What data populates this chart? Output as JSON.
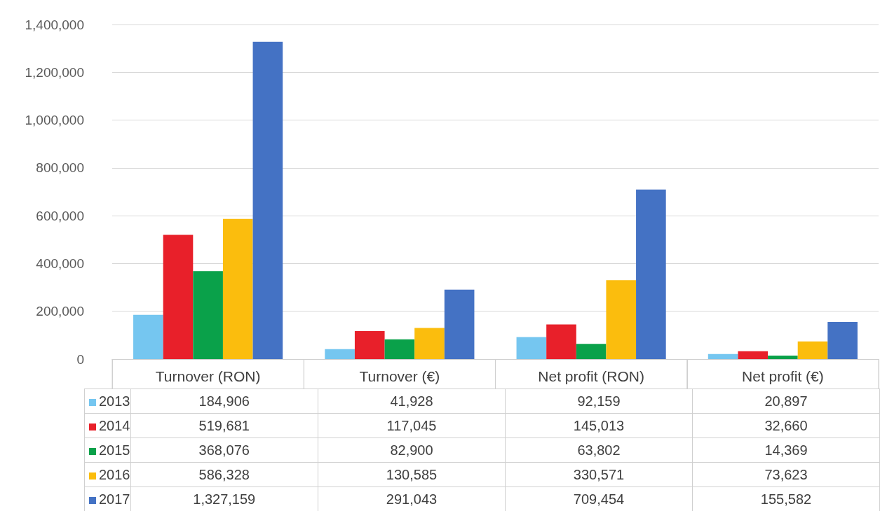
{
  "chart_data": {
    "type": "bar",
    "categories": [
      "Turnover (RON)",
      "Turnover (€)",
      "Net profit (RON)",
      "Net profit (€)"
    ],
    "series": [
      {
        "name": "2013",
        "color": "#75c6f0",
        "values": [
          184906,
          41928,
          92159,
          20897
        ],
        "value_labels": [
          "184,906",
          "41,928",
          "92,159",
          "20,897"
        ]
      },
      {
        "name": "2014",
        "color": "#e8202a",
        "values": [
          519681,
          117045,
          145013,
          32660
        ],
        "value_labels": [
          "519,681",
          "117,045",
          "145,013",
          "32,660"
        ]
      },
      {
        "name": "2015",
        "color": "#0aa14a",
        "values": [
          368076,
          82900,
          63802,
          14369
        ],
        "value_labels": [
          "368,076",
          "82,900",
          "63,802",
          "14,369"
        ]
      },
      {
        "name": "2016",
        "color": "#fbbd0d",
        "values": [
          586328,
          130585,
          330571,
          73623
        ],
        "value_labels": [
          "586,328",
          "130,585",
          "330,571",
          "73,623"
        ]
      },
      {
        "name": "2017",
        "color": "#4472c4",
        "values": [
          1327159,
          291043,
          709454,
          155582
        ],
        "value_labels": [
          "1,327,159",
          "291,043",
          "709,454",
          "155,582"
        ]
      }
    ],
    "ylim": [
      0,
      1400000
    ],
    "yticks": [
      0,
      {
        "value": 200000,
        "label": "200,000"
      },
      {
        "value": 400000,
        "label": "400,000"
      },
      {
        "value": 600000,
        "label": "600,000"
      },
      {
        "value": 800000,
        "label": "800,000"
      },
      {
        "value": 1000000,
        "label": "1,000,000"
      },
      {
        "value": 1200000,
        "label": "1,200,000"
      },
      {
        "value": 1400000,
        "label": "1,400,000"
      }
    ],
    "grid": "y",
    "legend": "bottom left"
  }
}
